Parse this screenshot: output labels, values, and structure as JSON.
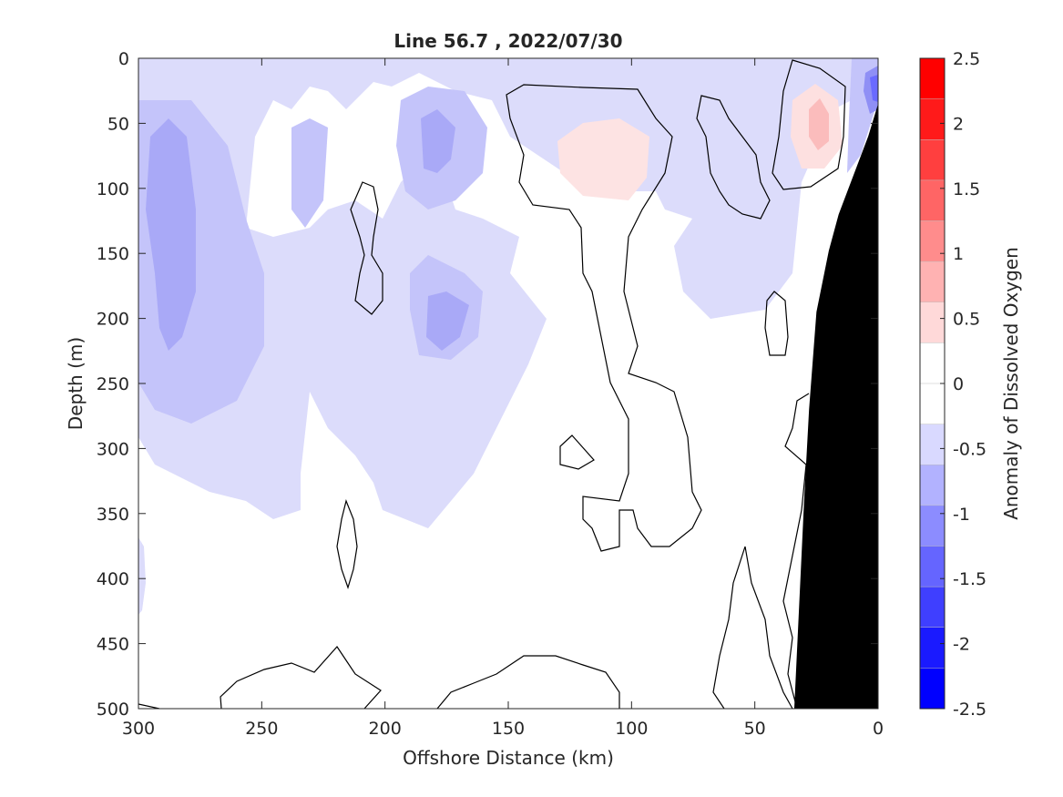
{
  "chart_data": {
    "type": "contour",
    "title": "Line 56.7 , 2022/07/30",
    "xlabel": "Offshore Distance (km)",
    "ylabel": "Depth (m)",
    "colorbar_label": "Anomaly of Dissolved Oxygen",
    "xlim": [
      300,
      0
    ],
    "ylim": [
      500,
      0
    ],
    "x_reversed": true,
    "y_reversed": true,
    "x_ticks": [
      300,
      250,
      200,
      150,
      100,
      50,
      0
    ],
    "y_ticks": [
      0,
      50,
      100,
      150,
      200,
      250,
      300,
      350,
      400,
      450,
      500
    ],
    "colorbar_range": [
      -2.5,
      2.5
    ],
    "colorbar_ticks": [
      2.5,
      2,
      1.5,
      1,
      0.5,
      0,
      -0.5,
      -1,
      -1.5,
      -2,
      -2.5
    ],
    "colorbar_tick_labels": [
      "2.5",
      "2",
      "1.5",
      "1",
      "0.5",
      "0",
      "-0.5",
      "-1",
      "-1.5",
      "-2",
      "-2.5"
    ],
    "colorbar_colors": [
      "#ff0000",
      "#ff1a1a",
      "#ff3f3f",
      "#ff6565",
      "#ff8c8c",
      "#ffb2b2",
      "#ffd9d9",
      "#ffffff",
      "#ffffff",
      "#d9d9ff",
      "#b2b2ff",
      "#8c8cff",
      "#6565ff",
      "#3f3fff",
      "#1a1aff",
      "#0000ff"
    ],
    "bathymetry_color": "#000000",
    "bathymetry": [
      {
        "x": 0,
        "y": 35
      },
      {
        "x": 4,
        "y": 60
      },
      {
        "x": 10,
        "y": 90
      },
      {
        "x": 16,
        "y": 120
      },
      {
        "x": 20,
        "y": 148
      },
      {
        "x": 25,
        "y": 195
      },
      {
        "x": 28,
        "y": 270
      },
      {
        "x": 30,
        "y": 340
      },
      {
        "x": 32,
        "y": 420
      },
      {
        "x": 34,
        "y": 500
      }
    ],
    "zero_contour_regions": [
      {
        "name": "mid-section",
        "x": [
          50,
          150
        ],
        "y": [
          20,
          380
        ]
      },
      {
        "name": "nearshore-surface",
        "x": [
          13,
          42
        ],
        "y": [
          0,
          100
        ]
      },
      {
        "name": "slope-band",
        "x": [
          30,
          67
        ],
        "y": [
          30,
          118
        ]
      },
      {
        "name": "thin-eddy-upper",
        "x": [
          199,
          213
        ],
        "y": [
          90,
          200
        ]
      },
      {
        "name": "thin-eddy-lower",
        "x": [
          210,
          218
        ],
        "y": [
          340,
          408
        ]
      }
    ],
    "negative_regions": [
      {
        "name": "offshore-core",
        "x": [
          280,
          290
        ],
        "y": [
          60,
          230
        ],
        "level": -1.0
      },
      {
        "name": "mid-core-upper",
        "x": [
          170,
          190
        ],
        "y": [
          50,
          90
        ],
        "level": -1.0
      },
      {
        "name": "mid-core-lower",
        "x": [
          160,
          180
        ],
        "y": [
          180,
          250
        ],
        "level": -1.0
      },
      {
        "name": "coastal-surface",
        "x": [
          0,
          12
        ],
        "y": [
          5,
          90
        ],
        "level": -1.5
      }
    ],
    "positive_regions": [
      {
        "name": "mid-positive",
        "x": [
          95,
          130
        ],
        "y": [
          50,
          110
        ],
        "level": 0.5
      },
      {
        "name": "nearshore-positive",
        "x": [
          15,
          35
        ],
        "y": [
          20,
          90
        ],
        "level": 0.8
      }
    ]
  }
}
